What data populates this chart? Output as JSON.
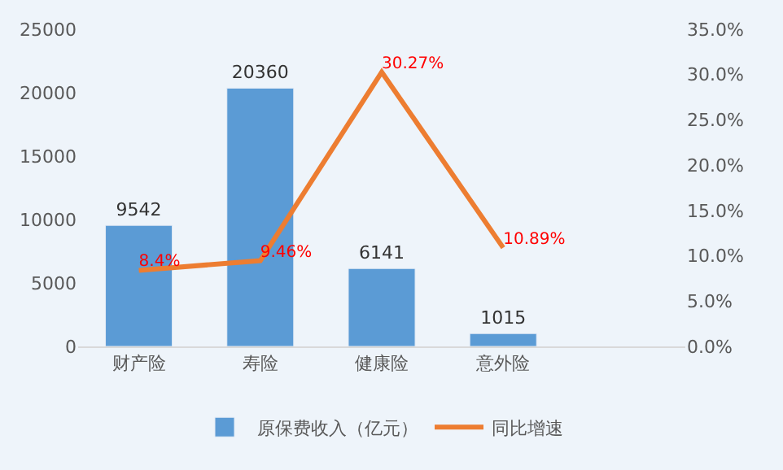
{
  "chart_data": {
    "type": "bar",
    "categories": [
      "财产险",
      "寿险",
      "健康险",
      "意外险",
      null
    ],
    "series": [
      {
        "name": "原保费收入（亿元）",
        "color": "#5b9bd5",
        "values": [
          9542,
          20360,
          6141,
          1015,
          null
        ],
        "value_labels": [
          "9542",
          "20360",
          "6141",
          "1015",
          null
        ]
      },
      {
        "name": "同比增速",
        "type": "line",
        "axis": "y2",
        "color": "#ed7d31",
        "values": [
          8.4,
          9.46,
          30.27,
          10.89,
          null
        ],
        "value_labels": [
          "8.4%",
          "9.46%",
          "30.27%",
          "10.89%",
          null
        ]
      }
    ],
    "ylim": [
      0,
      25000
    ],
    "yticks": [
      0,
      5000,
      10000,
      15000,
      20000,
      25000
    ],
    "y2lim": [
      0,
      35
    ],
    "y2ticks": [
      {
        "value": 0,
        "label": "0.0%"
      },
      {
        "value": 5,
        "label": "5.0%"
      },
      {
        "value": 10,
        "label": "10.0%"
      },
      {
        "value": 15,
        "label": "15.0%"
      },
      {
        "value": 20,
        "label": "20.0%"
      },
      {
        "value": 25,
        "label": "25.0%"
      },
      {
        "value": 30,
        "label": "30.0%"
      },
      {
        "value": 35,
        "label": "35.0%"
      }
    ],
    "grid": false,
    "legend": "bottom",
    "marker": "none",
    "line_style": "solid"
  }
}
